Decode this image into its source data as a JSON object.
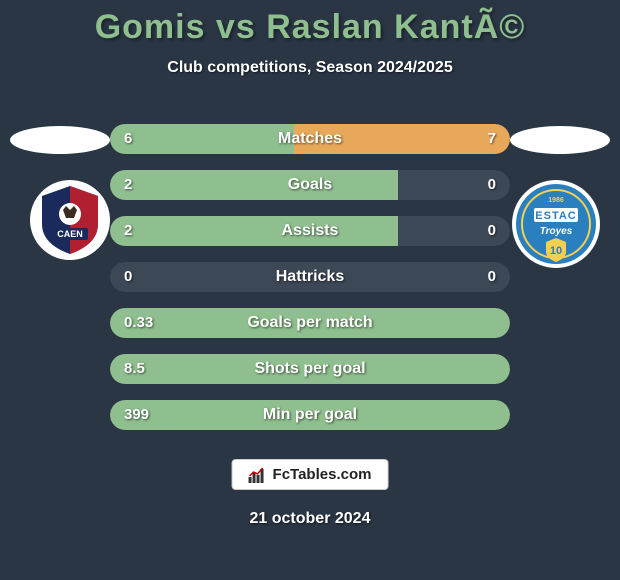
{
  "header": {
    "title": "Gomis vs Raslan KantÃ©",
    "title_color": "#8fbf8f",
    "title_fontsize": 34,
    "subtitle": "Club competitions, Season 2024/2025",
    "subtitle_color": "#ffffff"
  },
  "background_color": "#2b3645",
  "players": {
    "left": {
      "name": "Gomis",
      "club_badge_bg": "#1a2a5c",
      "club_badge_text": "CAEN",
      "club_badge_text_color": "#ffffff"
    },
    "right": {
      "name": "Raslan KantÃ©",
      "club_badge_bg": "#2a7fbf",
      "club_badge_text": "ESTAC\nTroyes\n10",
      "club_badge_text_color": "#ffffff"
    }
  },
  "stat_bar": {
    "track_color": "#3d4856",
    "left_fill_color": "#8fbf8f",
    "right_fill_color": "#e8a85a",
    "label_color": "#ffffff",
    "value_color": "#ffffff",
    "height": 30,
    "radius": 15,
    "fontsize": 16
  },
  "stats": [
    {
      "label": "Matches",
      "left_value": "6",
      "right_value": "7",
      "left_pct": 46,
      "right_pct": 54
    },
    {
      "label": "Goals",
      "left_value": "2",
      "right_value": "0",
      "left_pct": 72,
      "right_pct": 0
    },
    {
      "label": "Assists",
      "left_value": "2",
      "right_value": "0",
      "left_pct": 72,
      "right_pct": 0
    },
    {
      "label": "Hattricks",
      "left_value": "0",
      "right_value": "0",
      "left_pct": 0,
      "right_pct": 0
    },
    {
      "label": "Goals per match",
      "left_value": "0.33",
      "right_value": "",
      "left_pct": 100,
      "right_pct": 0
    },
    {
      "label": "Shots per goal",
      "left_value": "8.5",
      "right_value": "",
      "left_pct": 100,
      "right_pct": 0
    },
    {
      "label": "Min per goal",
      "left_value": "399",
      "right_value": "",
      "left_pct": 100,
      "right_pct": 0
    }
  ],
  "footer": {
    "brand_text": "FcTables.com",
    "brand_bg": "#ffffff",
    "brand_text_color": "#222222",
    "date": "21 october 2024",
    "date_color": "#ffffff"
  }
}
